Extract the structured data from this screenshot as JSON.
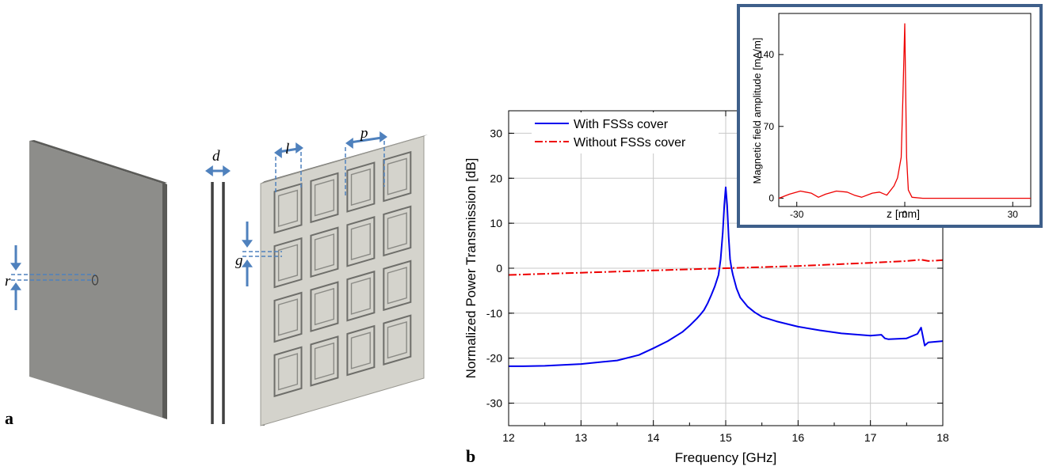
{
  "colors": {
    "panel_fill": "#8d8d8a",
    "panel_edge": "#5b5b58",
    "fss_fill": "#d4d3cc",
    "fss_edge": "#6e6e6a",
    "dimension": "#4f81bd",
    "series_with": "#0000ee",
    "series_without": "#ee0000",
    "inset_frame": "#3e5f8a"
  },
  "panel_a": {
    "label": "a",
    "dim_d": "d",
    "dim_l": "l",
    "dim_p": "p",
    "dim_g": "g",
    "dim_r": "r",
    "fss_rows": 4,
    "fss_cols": 4
  },
  "panel_b": {
    "label": "b",
    "chart_data": [
      {
        "type": "line",
        "xlabel": "Frequency [GHz]",
        "ylabel": "Normalized Power Transmission [dB]",
        "xlim": [
          12,
          18
        ],
        "ylim": [
          -35,
          35
        ],
        "xticks": [
          "12",
          "13",
          "14",
          "15",
          "16",
          "17",
          "18"
        ],
        "yticks": [
          "-30",
          "-20",
          "-10",
          "0",
          "10",
          "20",
          "30"
        ],
        "grid": true,
        "legend": "top-left",
        "series": [
          {
            "name": "With FSSs cover",
            "color": "#0000ee",
            "style": "solid",
            "x": [
              12.0,
              12.2,
              12.5,
              13.0,
              13.5,
              13.8,
              14.0,
              14.2,
              14.4,
              14.5,
              14.6,
              14.65,
              14.7,
              14.75,
              14.8,
              14.85,
              14.9,
              14.93,
              14.96,
              14.98,
              15.0,
              15.02,
              15.04,
              15.06,
              15.08,
              15.1,
              15.15,
              15.2,
              15.3,
              15.4,
              15.5,
              15.7,
              16.0,
              16.3,
              16.6,
              17.0,
              17.15,
              17.2,
              17.25,
              17.5,
              17.65,
              17.7,
              17.75,
              17.8,
              18.0
            ],
            "y": [
              -21.8,
              -21.8,
              -21.7,
              -21.3,
              -20.5,
              -19.3,
              -17.8,
              -16.2,
              -14.2,
              -12.8,
              -11.2,
              -10.3,
              -9.3,
              -7.8,
              -6.0,
              -4.0,
              -1.5,
              2.0,
              8.0,
              14.0,
              18.0,
              14.0,
              7.0,
              2.0,
              0.0,
              -1.5,
              -4.5,
              -6.5,
              -8.5,
              -9.8,
              -10.8,
              -11.8,
              -13.0,
              -13.8,
              -14.5,
              -15.0,
              -14.8,
              -15.6,
              -15.8,
              -15.6,
              -14.6,
              -13.2,
              -17.2,
              -16.5,
              -16.2
            ]
          },
          {
            "name": "Without FSSs cover",
            "color": "#ee0000",
            "style": "dash-dot",
            "x": [
              12.0,
              13.0,
              14.0,
              15.0,
              16.0,
              17.0,
              17.5,
              17.7,
              17.8,
              18.0
            ],
            "y": [
              -1.5,
              -1.0,
              -0.5,
              0.0,
              0.5,
              1.2,
              1.6,
              1.9,
              1.6,
              1.8
            ]
          }
        ]
      },
      {
        "type": "line",
        "xlabel": "z [mm]",
        "ylabel": "Magnetic field amplitude [mA/m]",
        "xlim": [
          -35,
          35
        ],
        "ylim": [
          -8,
          180
        ],
        "xticks": [
          "-30",
          "0",
          "30"
        ],
        "yticks": [
          "0",
          "70",
          "140"
        ],
        "grid": false,
        "series": [
          {
            "color": "#ee0000",
            "style": "solid",
            "x": [
              -35,
              -32,
              -29,
              -26,
              -24,
              -22,
              -19,
              -16,
              -14,
              -12,
              -9,
              -7,
              -5,
              -3,
              -2,
              -1,
              -0.5,
              0,
              0.5,
              1,
              2,
              5,
              15,
              35
            ],
            "y": [
              0,
              4,
              7,
              5,
              1,
              4,
              7,
              6,
              3,
              1,
              5,
              6,
              3,
              12,
              20,
              40,
              100,
              170,
              40,
              8,
              1,
              0,
              0,
              0
            ]
          }
        ]
      }
    ]
  }
}
